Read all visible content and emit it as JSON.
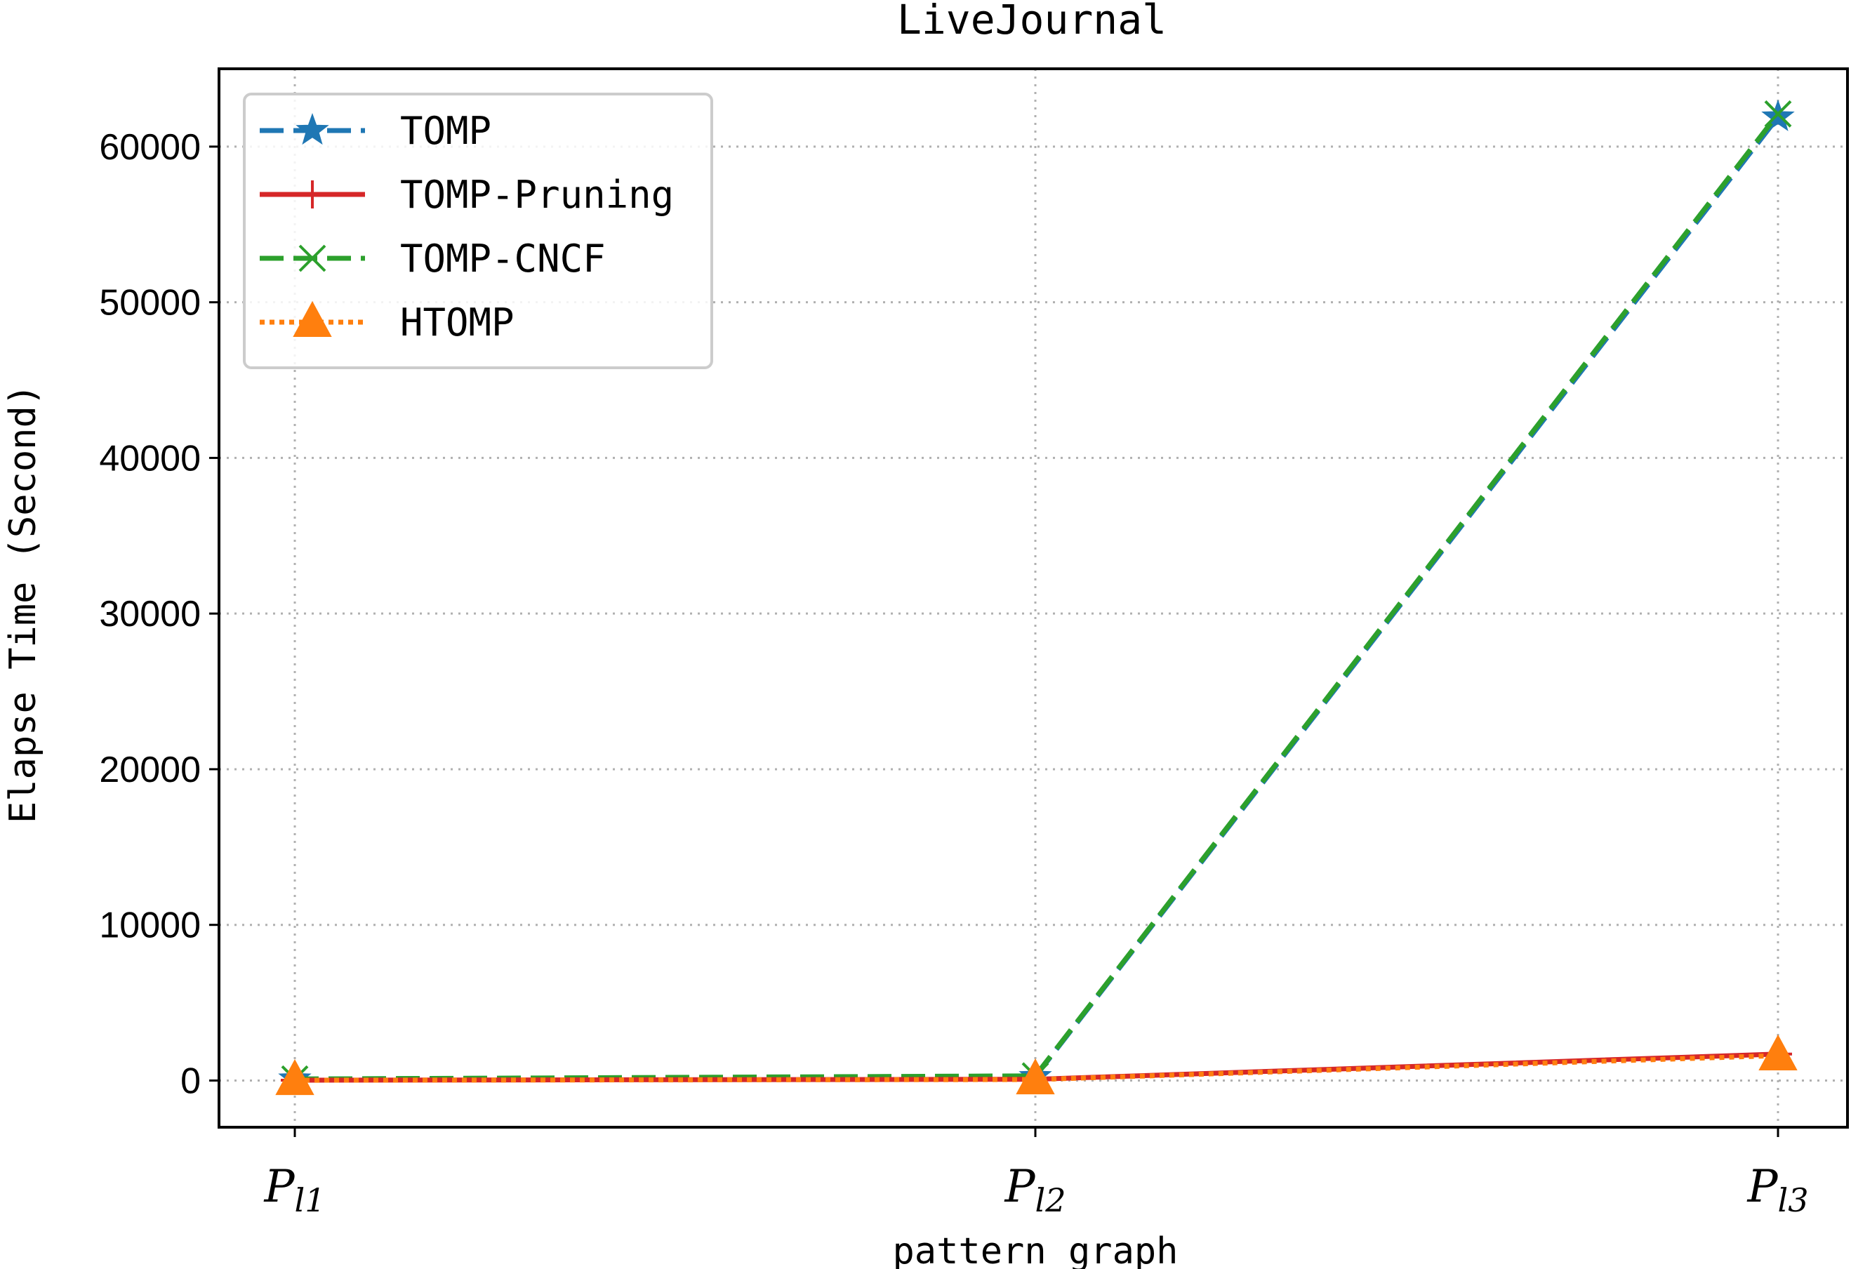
{
  "chart_data": {
    "type": "line",
    "title": "LiveJournal",
    "xlabel": "pattern graph",
    "ylabel": "Elapse Time (Second)",
    "categories": [
      {
        "main": "P",
        "sub_italic": "l",
        "sub": "1"
      },
      {
        "main": "P",
        "sub_italic": "l",
        "sub": "2"
      },
      {
        "main": "P",
        "sub_italic": "l",
        "sub": "3"
      }
    ],
    "ylim": [
      -3000,
      65000
    ],
    "yticks": [
      0,
      10000,
      20000,
      30000,
      40000,
      50000,
      60000
    ],
    "grid": true,
    "legend_position": "upper-left",
    "series": [
      {
        "name": "TOMP",
        "values": [
          100,
          250,
          61900
        ],
        "color": "#1f77b4",
        "linestyle": "dashed",
        "marker": "star"
      },
      {
        "name": "TOMP-Pruning",
        "values": [
          20,
          80,
          1700
        ],
        "color": "#d62728",
        "linestyle": "solid",
        "marker": "plus"
      },
      {
        "name": "TOMP-CNCF",
        "values": [
          100,
          300,
          62100
        ],
        "color": "#2ca02c",
        "linestyle": "dashed",
        "marker": "x"
      },
      {
        "name": "HTOMP",
        "values": [
          15,
          60,
          1600
        ],
        "color": "#ff7f0e",
        "linestyle": "dotted",
        "marker": "triangle"
      }
    ]
  }
}
